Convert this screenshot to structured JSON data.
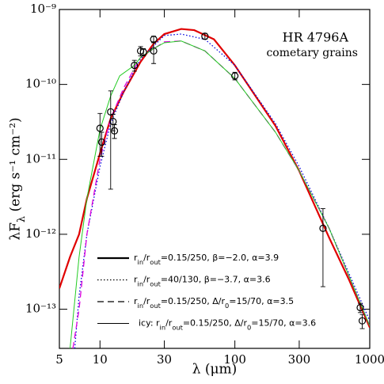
{
  "chart_data": {
    "type": "line",
    "xscale": "log",
    "yscale": "log",
    "xlabel": "λ (μm)",
    "ylabel": "λFλ (erg s⁻¹ cm⁻²)",
    "annotations": [
      "HR 4796A",
      "cometary grains"
    ],
    "xlim": [
      5,
      1000
    ],
    "ylim": [
      3e-14,
      1e-09
    ],
    "xticks": [
      5,
      10,
      30,
      100,
      300,
      1000
    ],
    "yticks": [
      {
        "value": 1e-09,
        "label": "10⁻⁹"
      },
      {
        "value": 1e-10,
        "label": "10⁻¹⁰"
      },
      {
        "value": 1e-11,
        "label": "10⁻¹¹"
      },
      {
        "value": 1e-12,
        "label": "10⁻¹²"
      },
      {
        "value": 1e-13,
        "label": "10⁻¹³"
      }
    ],
    "legend": "lower left",
    "series": [
      {
        "name": "rin/rout=0.15/250, β=−2.0, α=3.9",
        "color": "#e00000",
        "dash": "solid",
        "width": 2.2,
        "x": [
          5,
          6,
          7,
          8,
          10,
          12,
          15,
          20,
          25,
          30,
          40,
          50,
          70,
          100,
          200,
          300,
          500,
          700,
          1000
        ],
        "values": [
          1.9e-13,
          5e-13,
          1e-12,
          3e-12,
          1.2e-11,
          3.5e-11,
          8e-11,
          2e-10,
          3.5e-10,
          4.7e-10,
          5.5e-10,
          5.3e-10,
          4e-10,
          1.8e-10,
          2.8e-11,
          7e-12,
          9e-13,
          2.5e-13,
          5.7e-14
        ]
      },
      {
        "name": "rin/rout=40/130, β=−3.7, α=3.6",
        "color": "#0000dd",
        "dash": "dotted",
        "width": 1.3,
        "x": [
          6.5,
          7,
          8,
          10,
          12,
          15,
          20,
          30,
          40,
          60,
          100,
          200,
          300,
          500,
          1000
        ],
        "values": [
          3e-14,
          1.5e-13,
          1e-12,
          8e-12,
          3e-11,
          8e-11,
          2.2e-10,
          4.5e-10,
          4.7e-10,
          4e-10,
          1.8e-10,
          3e-11,
          8e-12,
          1.2e-12,
          7e-14
        ]
      },
      {
        "name": "rin/rout=0.15/250, Δ/r0=15/70, α=3.5",
        "color": "#dd00dd",
        "dash": "dashed",
        "width": 1.3,
        "x": [
          6.3,
          7,
          8,
          10,
          12,
          15,
          20,
          30,
          40,
          60,
          100,
          200,
          300,
          500,
          1000
        ],
        "values": [
          3e-14,
          1e-13,
          1e-12,
          1e-11,
          3.5e-11,
          9e-11,
          2.3e-10,
          3.7e-10,
          3.8e-10,
          2.8e-10,
          1.2e-10,
          2.3e-11,
          7e-12,
          1.2e-12,
          6e-14
        ]
      },
      {
        "name": "icy: rin/rout=0.15/250, Δ/r0=15/70, α=3.6",
        "color": "#22cc22",
        "dash": "solid",
        "width": 1,
        "x": [
          6,
          7,
          8,
          10,
          12,
          14,
          18,
          20,
          25,
          30,
          40,
          60,
          100,
          200,
          300,
          500,
          1000
        ],
        "values": [
          3e-14,
          5e-13,
          3e-12,
          2.5e-11,
          7e-11,
          1.3e-10,
          1.8e-10,
          2.3e-10,
          3e-10,
          3.6e-10,
          3.8e-10,
          2.8e-10,
          1.2e-10,
          2.3e-11,
          7e-12,
          1.2e-12,
          6e-14
        ]
      }
    ],
    "points": {
      "x": [
        10,
        10.3,
        12,
        12.5,
        12.8,
        18,
        20,
        21,
        25,
        25,
        60,
        100,
        450,
        850,
        880
      ],
      "y": [
        2.6e-11,
        1.7e-11,
        4.3e-11,
        3.2e-11,
        2.4e-11,
        1.8e-10,
        2.8e-10,
        2.7e-10,
        2.8e-10,
        4e-10,
        4.4e-10,
        1.3e-10,
        1.2e-12,
        1.05e-13,
        7e-14
      ],
      "errors": [
        1.5e-11,
        6e-12,
        3.9e-11,
        8e-12,
        5e-12,
        3e-11,
        4e-11,
        3e-11,
        9e-11,
        4e-11,
        4e-11,
        1.5e-11,
        1e-12,
        1.5e-14,
        1.5e-14
      ]
    }
  }
}
